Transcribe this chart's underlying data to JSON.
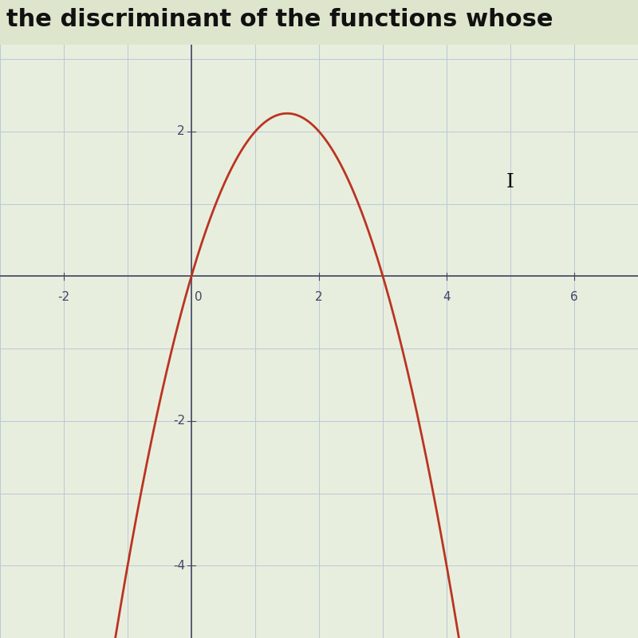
{
  "title": "the discriminant of the functions whose",
  "bg_color": "#dde5cc",
  "plot_bg_color": "#e8eedd",
  "grid_color": "#b8c8d8",
  "axis_color": "#444466",
  "curve_color": "#bb3322",
  "curve_linewidth": 2.0,
  "xlim": [
    -3,
    7
  ],
  "ylim": [
    -5,
    3.2
  ],
  "xticks": [
    -2,
    0,
    2,
    4,
    6
  ],
  "yticks": [
    -4,
    -2,
    2
  ],
  "a": -1,
  "b": 3,
  "c": 0,
  "x_start": -1.2,
  "x_end": 4.2,
  "fig_width": 8.0,
  "fig_height": 8.0,
  "dpi": 100,
  "cursor_x": 5.0,
  "cursor_y": 1.3,
  "tick_font_size": 11,
  "title_font_size": 22,
  "title_color": "#111111"
}
